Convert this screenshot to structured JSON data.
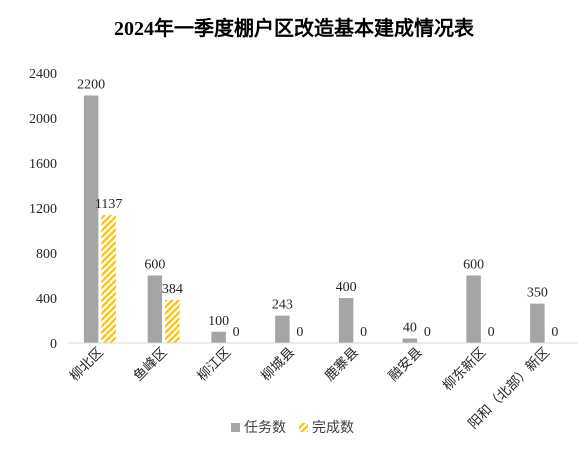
{
  "chart_data": {
    "type": "bar",
    "title": "2024年一季度棚户区改造基本建成情况表",
    "categories": [
      "柳北区",
      "鱼峰区",
      "柳江区",
      "柳城县",
      "鹿寨县",
      "融安县",
      "柳东新区",
      "阳和（北部）新区"
    ],
    "series": [
      {
        "name": "任务数",
        "values": [
          2200,
          600,
          100,
          243,
          400,
          40,
          600,
          350
        ],
        "color": "#A5A5A5",
        "hatched": false
      },
      {
        "name": "完成数",
        "values": [
          1137,
          384,
          0,
          0,
          0,
          0,
          0,
          0
        ],
        "color": "#FFC000",
        "hatched": true
      }
    ],
    "ylim": [
      0,
      2400
    ],
    "yticks": [
      0,
      400,
      800,
      1200,
      1600,
      2000,
      2400
    ],
    "grid": false,
    "legend": "bottom",
    "data_labels": true
  }
}
